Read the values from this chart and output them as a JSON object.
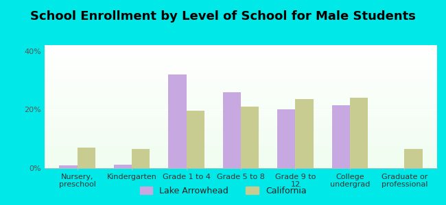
{
  "title": "School Enrollment by Level of School for Male Students",
  "categories": [
    "Nursery,\npreschool",
    "Kindergarten",
    "Grade 1 to 4",
    "Grade 5 to 8",
    "Grade 9 to\n12",
    "College\nundergrad",
    "Graduate or\nprofessional"
  ],
  "lake_arrowhead": [
    1.0,
    1.2,
    32.0,
    26.0,
    20.0,
    21.5,
    0.0
  ],
  "california": [
    7.0,
    6.5,
    19.5,
    21.0,
    23.5,
    24.0,
    6.5
  ],
  "bar_color_lake": "#c8a8e0",
  "bar_color_ca": "#c8cc90",
  "legend_lake": "Lake Arrowhead",
  "legend_ca": "California",
  "ylim": [
    0,
    42
  ],
  "yticks": [
    0,
    20,
    40
  ],
  "ytick_labels": [
    "0%",
    "20%",
    "40%"
  ],
  "bg_outer": "#00e8e8",
  "title_fontsize": 13,
  "tick_fontsize": 8,
  "legend_fontsize": 9
}
